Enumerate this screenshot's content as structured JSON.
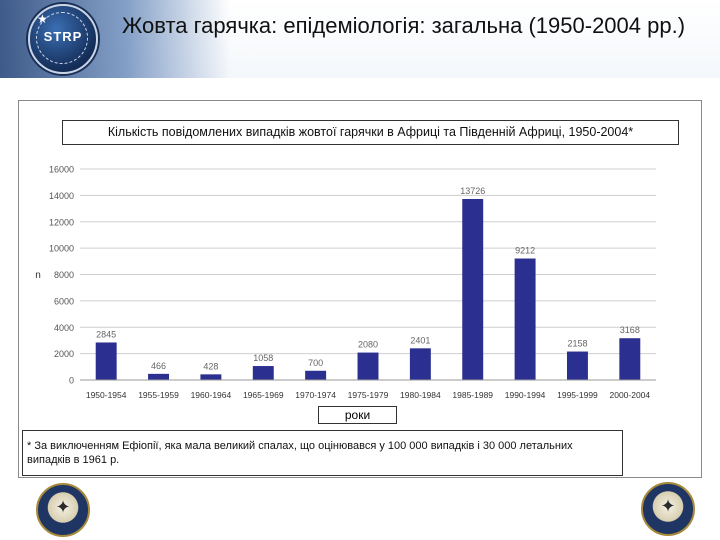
{
  "slide": {
    "title": "Жовта гарячка: епідеміологія: загальна (1950-2004 рр.)",
    "logo_text": "STRP",
    "footnote": "* За виключенням Ефіопії, яка мала великий спалах, що оцінювався у 100 000 випадків і 30 000 летальних випадків в 1961 р."
  },
  "colors": {
    "bar": "#2b2f8f",
    "grid": "#cfcfcf",
    "axis_text": "#555555"
  },
  "chart_data": {
    "type": "bar",
    "title": "Кількість повідомлених випадків жовтої гарячки в Африці та Південній Африці, 1950-2004*",
    "xlabel": "роки",
    "ylabel": "n",
    "ylim": [
      0,
      16000
    ],
    "yticks": [
      0,
      2000,
      4000,
      6000,
      8000,
      10000,
      12000,
      14000,
      16000
    ],
    "categories": [
      "1950-1954",
      "1955-1959",
      "1960-1964",
      "1965-1969",
      "1970-1974",
      "1975-1979",
      "1980-1984",
      "1985-1989",
      "1990-1994",
      "1995-1999",
      "2000-2004"
    ],
    "values": [
      2845,
      466,
      428,
      1058,
      700,
      2080,
      2401,
      13726,
      9212,
      2158,
      3168
    ],
    "data_labels": [
      "2845",
      "466",
      "428",
      "1058",
      "700",
      "2080",
      "2401",
      "13726",
      "9212",
      "2158",
      "3168"
    ],
    "grid": true
  }
}
